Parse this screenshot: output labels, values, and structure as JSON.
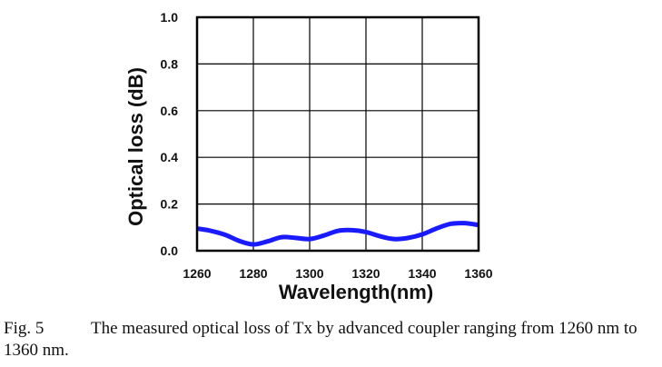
{
  "chart_data": {
    "type": "line",
    "xlabel": "Wavelength(nm)",
    "ylabel": "Optical loss (dB)",
    "xlim": [
      1260,
      1360
    ],
    "ylim": [
      0.0,
      1.0
    ],
    "x_ticks": [
      "1260",
      "1280",
      "1300",
      "1320",
      "1340",
      "1360"
    ],
    "y_ticks": [
      "0.0",
      "0.2",
      "0.4",
      "0.6",
      "0.8",
      "1.0"
    ],
    "grid": true,
    "series": [
      {
        "color": "#1a1aff",
        "x": [
          1260,
          1265,
          1270,
          1275,
          1280,
          1285,
          1290,
          1295,
          1300,
          1305,
          1310,
          1315,
          1320,
          1325,
          1330,
          1335,
          1340,
          1345,
          1350,
          1355,
          1360
        ],
        "values": [
          0.095,
          0.085,
          0.068,
          0.042,
          0.027,
          0.04,
          0.058,
          0.055,
          0.05,
          0.065,
          0.085,
          0.088,
          0.08,
          0.062,
          0.05,
          0.055,
          0.07,
          0.095,
          0.115,
          0.118,
          0.11
        ]
      }
    ]
  },
  "caption": {
    "label": "Fig. 5",
    "text": "The measured optical loss of Tx by advanced coupler ranging from 1260 nm to 1360 nm."
  }
}
